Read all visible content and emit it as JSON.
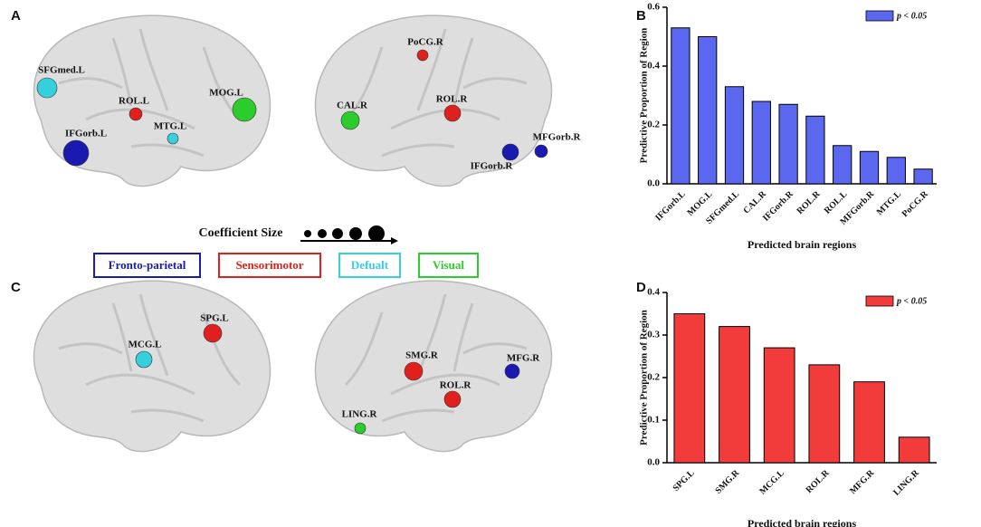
{
  "panel_labels": [
    "A",
    "B",
    "C",
    "D"
  ],
  "brain_panels": [
    {
      "nodes": [
        {
          "label": "SFGmed.L",
          "color": "#35d0dc"
        },
        {
          "label": "ROL.L",
          "color": "#e0201c"
        },
        {
          "label": "MOG.L",
          "color": "#2ccc2c"
        },
        {
          "label": "MTG.L",
          "color": "#35d0dc"
        },
        {
          "label": "IFGorb.L",
          "color": "#1a1ab0"
        }
      ]
    },
    {
      "nodes": [
        {
          "label": "PoCG.R",
          "color": "#e0201c"
        },
        {
          "label": "CAL.R",
          "color": "#2ccc2c"
        },
        {
          "label": "ROL.R",
          "color": "#e0201c"
        },
        {
          "label": "IFGorb.R",
          "color": "#1a1ab0"
        },
        {
          "label": "MFGorb.R",
          "color": "#1a1ab0"
        }
      ]
    },
    {
      "nodes": [
        {
          "label": "SPG.L",
          "color": "#e0201c"
        },
        {
          "label": "MCG.L",
          "color": "#35d0dc"
        }
      ]
    },
    {
      "nodes": [
        {
          "label": "SMG.R",
          "color": "#e0201c"
        },
        {
          "label": "ROL.R",
          "color": "#e0201c"
        },
        {
          "label": "MFG.R",
          "color": "#1a1ab0"
        },
        {
          "label": "LING.R",
          "color": "#2ccc2c"
        }
      ]
    }
  ],
  "legend": {
    "title": "Coefficient Size",
    "networks": [
      {
        "name": "Fronto-parietal",
        "color": "#1a1ab0"
      },
      {
        "name": "Sensorimotor",
        "color": "#e0201c"
      },
      {
        "name": "Defualt",
        "color": "#35d0dc"
      },
      {
        "name": "Visual",
        "color": "#2ccc2c"
      }
    ]
  },
  "chart_data": [
    {
      "type": "bar",
      "x_label": "Predicted brain regions",
      "y_label": "Predictive Proportion of Region",
      "categories": [
        "IFGorb.L",
        "MOG.L",
        "SFGmed.L",
        "CAL.R",
        "IFGorb.R",
        "ROL.R",
        "ROL.L",
        "MFGorb.R",
        "MTG.L",
        "PoCG.R"
      ],
      "series": [
        {
          "name": "p < 0.05",
          "color": "#5b67ee",
          "values": [
            0.53,
            0.5,
            0.33,
            0.28,
            0.27,
            0.23,
            0.13,
            0.11,
            0.09,
            0.05
          ]
        }
      ],
      "ylim": [
        0,
        0.6
      ],
      "yticks": [
        {
          "value": 0,
          "label": "0.0"
        },
        0.2,
        0.4,
        0.6
      ],
      "legend": "upper right"
    },
    {
      "type": "bar",
      "x_label": "Predicted brain regions",
      "y_label": "Predictive Proportion of Region",
      "categories": [
        "SPG.L",
        "SMG.R",
        "MCG.L",
        "ROL.R",
        "MFG.R",
        "LING.R"
      ],
      "series": [
        {
          "name": "p < 0.05",
          "color": "#f23c3c",
          "values": [
            0.35,
            0.32,
            0.27,
            0.23,
            0.19,
            0.06
          ]
        }
      ],
      "ylim": [
        0,
        0.4
      ],
      "yticks": [
        {
          "value": 0,
          "label": "0.0"
        },
        0.1,
        0.2,
        0.3,
        0.4
      ],
      "legend": "upper right"
    }
  ]
}
